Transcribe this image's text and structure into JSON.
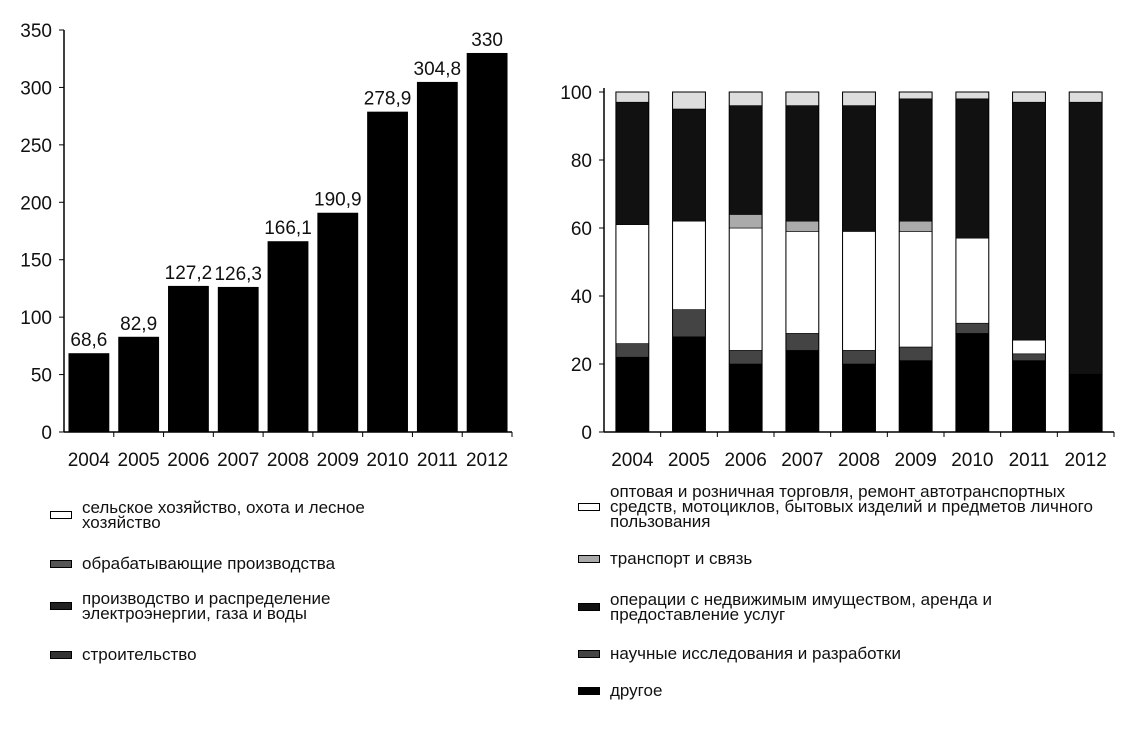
{
  "chart_data": [
    {
      "type": "bar",
      "categories": [
        "2004",
        "2005",
        "2006",
        "2007",
        "2008",
        "2009",
        "2010",
        "2011",
        "2012"
      ],
      "values": [
        68.6,
        82.9,
        127.2,
        126.3,
        166.1,
        190.9,
        278.9,
        304.8,
        330
      ],
      "value_labels": [
        "68,6",
        "82,9",
        "127,2",
        "126,3",
        "166,1",
        "190,9",
        "278,9",
        "304,8",
        "330"
      ],
      "ylim": [
        0,
        350
      ],
      "yticks": [
        0,
        50,
        100,
        150,
        200,
        250,
        300,
        350
      ],
      "grid": false,
      "bar_color": "#000000",
      "legend": [
        {
          "label": "сельское хозяйство, охота и лесное хозяйство",
          "color": "#ffffff"
        },
        {
          "label": "обрабатывающие производства",
          "color": "#555555"
        },
        {
          "label": "производство и распределение электроэнергии, газа и воды",
          "color": "#222222"
        },
        {
          "label": "строительство",
          "color": "#333333"
        }
      ]
    },
    {
      "type": "bar",
      "stacked": true,
      "categories": [
        "2004",
        "2005",
        "2006",
        "2007",
        "2008",
        "2009",
        "2010",
        "2011",
        "2012"
      ],
      "ylim": [
        0,
        100
      ],
      "yticks": [
        0,
        20,
        40,
        60,
        80,
        100
      ],
      "grid": false,
      "series": [
        {
          "name": "другое",
          "color": "#000000",
          "values": [
            22,
            28,
            20,
            24,
            20,
            21,
            29,
            21,
            17
          ]
        },
        {
          "name": "научные исследования и разработки",
          "color": "#444444",
          "values": [
            4,
            8,
            4,
            5,
            4,
            4,
            3,
            2,
            0
          ]
        },
        {
          "name": "оптовая и розничная торговля, ремонт автотранспортных средств, мотоциклов, бытовых изделий и предметов личного пользования",
          "color": "#ffffff",
          "values": [
            35,
            26,
            36,
            30,
            35,
            34,
            25,
            4,
            0
          ]
        },
        {
          "name": "транспорт и связь",
          "color": "#aaaaaa",
          "values": [
            0,
            0,
            4,
            3,
            0,
            3,
            0,
            0,
            0
          ]
        },
        {
          "name": "операции с недвижимым имуществом, аренда и предоставление услуг",
          "color": "#111111",
          "values": [
            36,
            33,
            32,
            34,
            37,
            36,
            41,
            70,
            80
          ]
        },
        {
          "name": "сельское хозяйство, охота и лесное хозяйство",
          "color": "#dddddd",
          "values": [
            3,
            5,
            4,
            4,
            4,
            2,
            2,
            3,
            3
          ]
        }
      ],
      "legend": [
        {
          "label": "оптовая и розничная торговля, ремонт автотранспортных средств, мотоциклов, бытовых изделий и предметов личного пользования",
          "color": "#ffffff"
        },
        {
          "label": "транспорт и связь",
          "color": "#aaaaaa"
        },
        {
          "label": "операции с недвижимым имуществом, аренда и предоставление услуг",
          "color": "#111111"
        },
        {
          "label": "научные исследования и разработки",
          "color": "#444444"
        },
        {
          "label": "другое",
          "color": "#000000"
        }
      ]
    }
  ]
}
